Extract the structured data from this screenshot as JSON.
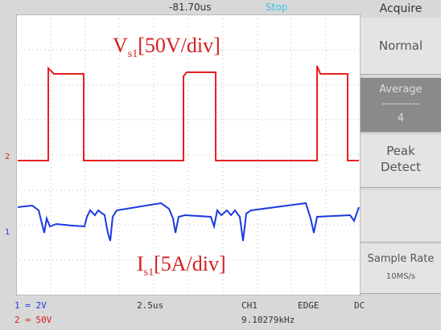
{
  "header": {
    "delay": "-81.70us",
    "state": "Stop",
    "menu_title": "Acquire"
  },
  "menu": {
    "normal": "Normal",
    "average": "Average",
    "average_bar": "----------",
    "average_count": "4",
    "peak": "Peak",
    "detect": "Detect",
    "sample_rate_label": "Sample Rate",
    "sample_rate": "10MS/s"
  },
  "annotations": {
    "voltage": {
      "symbol": "V",
      "subscript": "s1",
      "scale": "[50V/div]"
    },
    "current": {
      "symbol": "I",
      "subscript": "s1",
      "scale": "[5A/div]"
    }
  },
  "markers": {
    "ch2": "2",
    "ch1": "1"
  },
  "status": {
    "ch1_scale": "1 = 2V",
    "ch2_scale": "2 = 50V",
    "timebase": "2.5us",
    "trigger_source": "CH1",
    "trigger_type": "EDGE",
    "coupling": "DC",
    "frequency": "9.10279kHz"
  }
}
